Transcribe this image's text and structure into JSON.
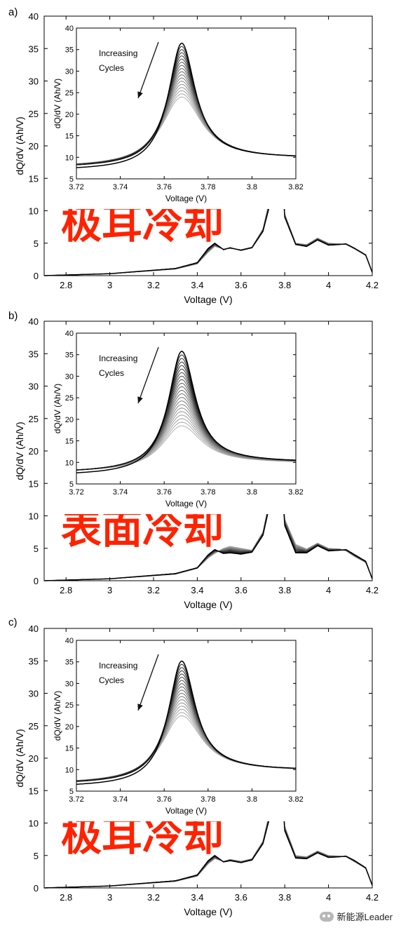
{
  "chart_data": [
    {
      "panel_label": "a)",
      "type": "line",
      "overlay_text": "极耳冷却",
      "xlabel": "Voltage (V)",
      "ylabel": "dQ/dV (Ah/V)",
      "xlim": [
        2.7,
        4.2
      ],
      "ylim": [
        0,
        40
      ],
      "xticks": [
        "2.8",
        "3",
        "3.2",
        "3.4",
        "3.6",
        "3.8",
        "4",
        "4.2"
      ],
      "yticks": [
        "0",
        "5",
        "10",
        "15",
        "20",
        "25",
        "30",
        "35",
        "40"
      ],
      "curves": {
        "count": 10,
        "first_cycle": {
          "x": [
            2.7,
            3.0,
            3.3,
            3.4,
            3.45,
            3.48,
            3.52,
            3.55,
            3.6,
            3.65,
            3.7,
            3.74,
            3.76,
            3.765,
            3.77,
            3.775,
            3.78,
            3.8,
            3.85,
            3.9,
            3.95,
            4.0,
            4.05,
            4.08,
            4.12,
            4.17,
            4.2
          ],
          "y": [
            0,
            0.3,
            1.1,
            2.0,
            4.2,
            5.0,
            4.0,
            4.3,
            3.9,
            4.3,
            6.8,
            12,
            25,
            33,
            36.5,
            32,
            20,
            9,
            4.8,
            4.5,
            5.5,
            4.7,
            4.8,
            4.9,
            4.2,
            3.2,
            0.5
          ]
        },
        "last_cycle": {
          "x": [
            2.7,
            3.0,
            3.3,
            3.4,
            3.45,
            3.48,
            3.52,
            3.55,
            3.6,
            3.65,
            3.7,
            3.74,
            3.76,
            3.765,
            3.77,
            3.775,
            3.78,
            3.8,
            3.85,
            3.9,
            3.95,
            4.0,
            4.05,
            4.08,
            4.12,
            4.17,
            4.2
          ],
          "y": [
            0,
            0.3,
            1.0,
            1.8,
            3.6,
            4.5,
            4.1,
            4.2,
            4.0,
            4.4,
            7.2,
            13,
            23,
            29,
            32,
            28.5,
            19,
            9.5,
            5.0,
            4.8,
            5.8,
            5.0,
            4.9,
            4.8,
            4.1,
            3.1,
            0.5
          ]
        }
      },
      "inset": {
        "xlabel": "Voltage (V)",
        "ylabel": "dQ/dV (Ah/V)",
        "xlim": [
          3.72,
          3.82
        ],
        "ylim": [
          5,
          40
        ],
        "xticks": [
          "3.72",
          "3.74",
          "3.76",
          "3.78",
          "3.8",
          "3.82"
        ],
        "yticks": [
          "5",
          "10",
          "15",
          "20",
          "25",
          "30",
          "35",
          "40"
        ],
        "annotation": "Increasing Cycles",
        "first_peak": 36.5,
        "last_peak": 24.0,
        "peak_voltage": 3.768,
        "edge_left": 7.5,
        "edge_right": 9.8,
        "count": 18
      }
    },
    {
      "panel_label": "b)",
      "type": "line",
      "overlay_text": "表面冷却",
      "xlabel": "Voltage (V)",
      "ylabel": "dQ/dV (Ah/V)",
      "xlim": [
        2.7,
        4.2
      ],
      "ylim": [
        0,
        40
      ],
      "xticks": [
        "2.8",
        "3",
        "3.2",
        "3.4",
        "3.6",
        "3.8",
        "4",
        "4.2"
      ],
      "yticks": [
        "0",
        "5",
        "10",
        "15",
        "20",
        "25",
        "30",
        "35",
        "40"
      ],
      "curves": {
        "count": 12,
        "first_cycle": {
          "x": [
            2.7,
            3.0,
            3.3,
            3.4,
            3.45,
            3.48,
            3.52,
            3.55,
            3.6,
            3.65,
            3.7,
            3.74,
            3.76,
            3.765,
            3.77,
            3.775,
            3.78,
            3.8,
            3.85,
            3.9,
            3.95,
            4.0,
            4.05,
            4.08,
            4.12,
            4.17,
            4.2
          ],
          "y": [
            0,
            0.3,
            1.1,
            2.0,
            4.0,
            4.8,
            4.2,
            4.3,
            4.1,
            4.4,
            7.0,
            13,
            26,
            34,
            36,
            31,
            19,
            8.5,
            4.3,
            4.3,
            5.4,
            4.6,
            4.7,
            4.8,
            4.0,
            3.0,
            0.3
          ]
        },
        "last_cycle": {
          "x": [
            2.7,
            3.0,
            3.3,
            3.4,
            3.45,
            3.48,
            3.52,
            3.55,
            3.6,
            3.65,
            3.7,
            3.74,
            3.76,
            3.765,
            3.77,
            3.775,
            3.78,
            3.8,
            3.85,
            3.9,
            3.95,
            4.0,
            4.05,
            4.08,
            4.12,
            4.17,
            4.2
          ],
          "y": [
            0,
            0.3,
            1.0,
            1.9,
            3.5,
            4.2,
            5.0,
            5.3,
            5.0,
            4.7,
            7.5,
            14,
            22,
            27,
            28.5,
            26,
            18.5,
            9.5,
            5.6,
            4.9,
            5.8,
            5.0,
            4.9,
            4.6,
            3.7,
            2.8,
            0.3
          ]
        }
      },
      "inset": {
        "xlabel": "Voltage (V)",
        "ylabel": "dQ/dV (Ah/V)",
        "xlim": [
          3.72,
          3.82
        ],
        "ylim": [
          5,
          40
        ],
        "xticks": [
          "3.72",
          "3.74",
          "3.76",
          "3.78",
          "3.8",
          "3.82"
        ],
        "yticks": [
          "5",
          "10",
          "15",
          "20",
          "25",
          "30",
          "35",
          "40"
        ],
        "annotation": "Increasing Cycles",
        "first_peak": 35.8,
        "last_peak": 18.5,
        "peak_voltage": 3.768,
        "edge_left": 7.5,
        "edge_right": 10.0,
        "count": 22
      }
    },
    {
      "panel_label": "c)",
      "type": "line",
      "overlay_text": "极耳冷却",
      "xlabel": "Voltage (V)",
      "ylabel": "dQ/dV (Ah/V)",
      "xlim": [
        2.7,
        4.2
      ],
      "ylim": [
        0,
        40
      ],
      "xticks": [
        "2.8",
        "3",
        "3.2",
        "3.4",
        "3.6",
        "3.8",
        "4",
        "4.2"
      ],
      "yticks": [
        "0",
        "5",
        "10",
        "15",
        "20",
        "25",
        "30",
        "35",
        "40"
      ],
      "curves": {
        "count": 10,
        "first_cycle": {
          "x": [
            2.7,
            3.0,
            3.3,
            3.4,
            3.45,
            3.48,
            3.52,
            3.55,
            3.6,
            3.65,
            3.7,
            3.74,
            3.76,
            3.765,
            3.77,
            3.775,
            3.78,
            3.8,
            3.85,
            3.9,
            3.95,
            4.0,
            4.05,
            4.08,
            4.12,
            4.17,
            4.2
          ],
          "y": [
            0,
            0.3,
            1.1,
            2.0,
            4.2,
            5.0,
            4.0,
            4.2,
            3.9,
            4.3,
            6.8,
            12,
            25,
            32.5,
            35.5,
            31,
            19.5,
            8.8,
            4.6,
            4.5,
            5.4,
            4.7,
            4.8,
            4.9,
            4.2,
            3.1,
            0.4
          ]
        },
        "last_cycle": {
          "x": [
            2.7,
            3.0,
            3.3,
            3.4,
            3.45,
            3.48,
            3.52,
            3.55,
            3.6,
            3.65,
            3.7,
            3.74,
            3.76,
            3.765,
            3.77,
            3.775,
            3.78,
            3.8,
            3.85,
            3.9,
            3.95,
            4.0,
            4.05,
            4.08,
            4.12,
            4.17,
            4.2
          ],
          "y": [
            0,
            0.3,
            1.0,
            1.8,
            3.7,
            4.5,
            4.1,
            4.4,
            4.1,
            4.5,
            7.2,
            13,
            23,
            29.5,
            32,
            28,
            18.8,
            9.5,
            5.0,
            4.8,
            5.7,
            5.0,
            4.9,
            4.8,
            4.0,
            3.0,
            0.4
          ]
        }
      },
      "inset": {
        "xlabel": "Voltage (V)",
        "ylabel": "dQ/dV (Ah/V)",
        "xlim": [
          3.72,
          3.82
        ],
        "ylim": [
          5,
          40
        ],
        "xticks": [
          "3.72",
          "3.74",
          "3.76",
          "3.78",
          "3.8",
          "3.82"
        ],
        "yticks": [
          "5",
          "10",
          "15",
          "20",
          "25",
          "30",
          "35",
          "40"
        ],
        "annotation": "Increasing Cycles",
        "first_peak": 35.2,
        "last_peak": 22.5,
        "peak_voltage": 3.768,
        "edge_left": 6.5,
        "edge_right": 9.8,
        "count": 18
      }
    }
  ],
  "watermark": {
    "text": "新能源Leader",
    "icon": "wechat-icon"
  },
  "colors": {
    "overlay_text": "#ff2200",
    "curve_dark": "#000000",
    "curve_light": "#aaaaaa",
    "axis": "#000000"
  }
}
